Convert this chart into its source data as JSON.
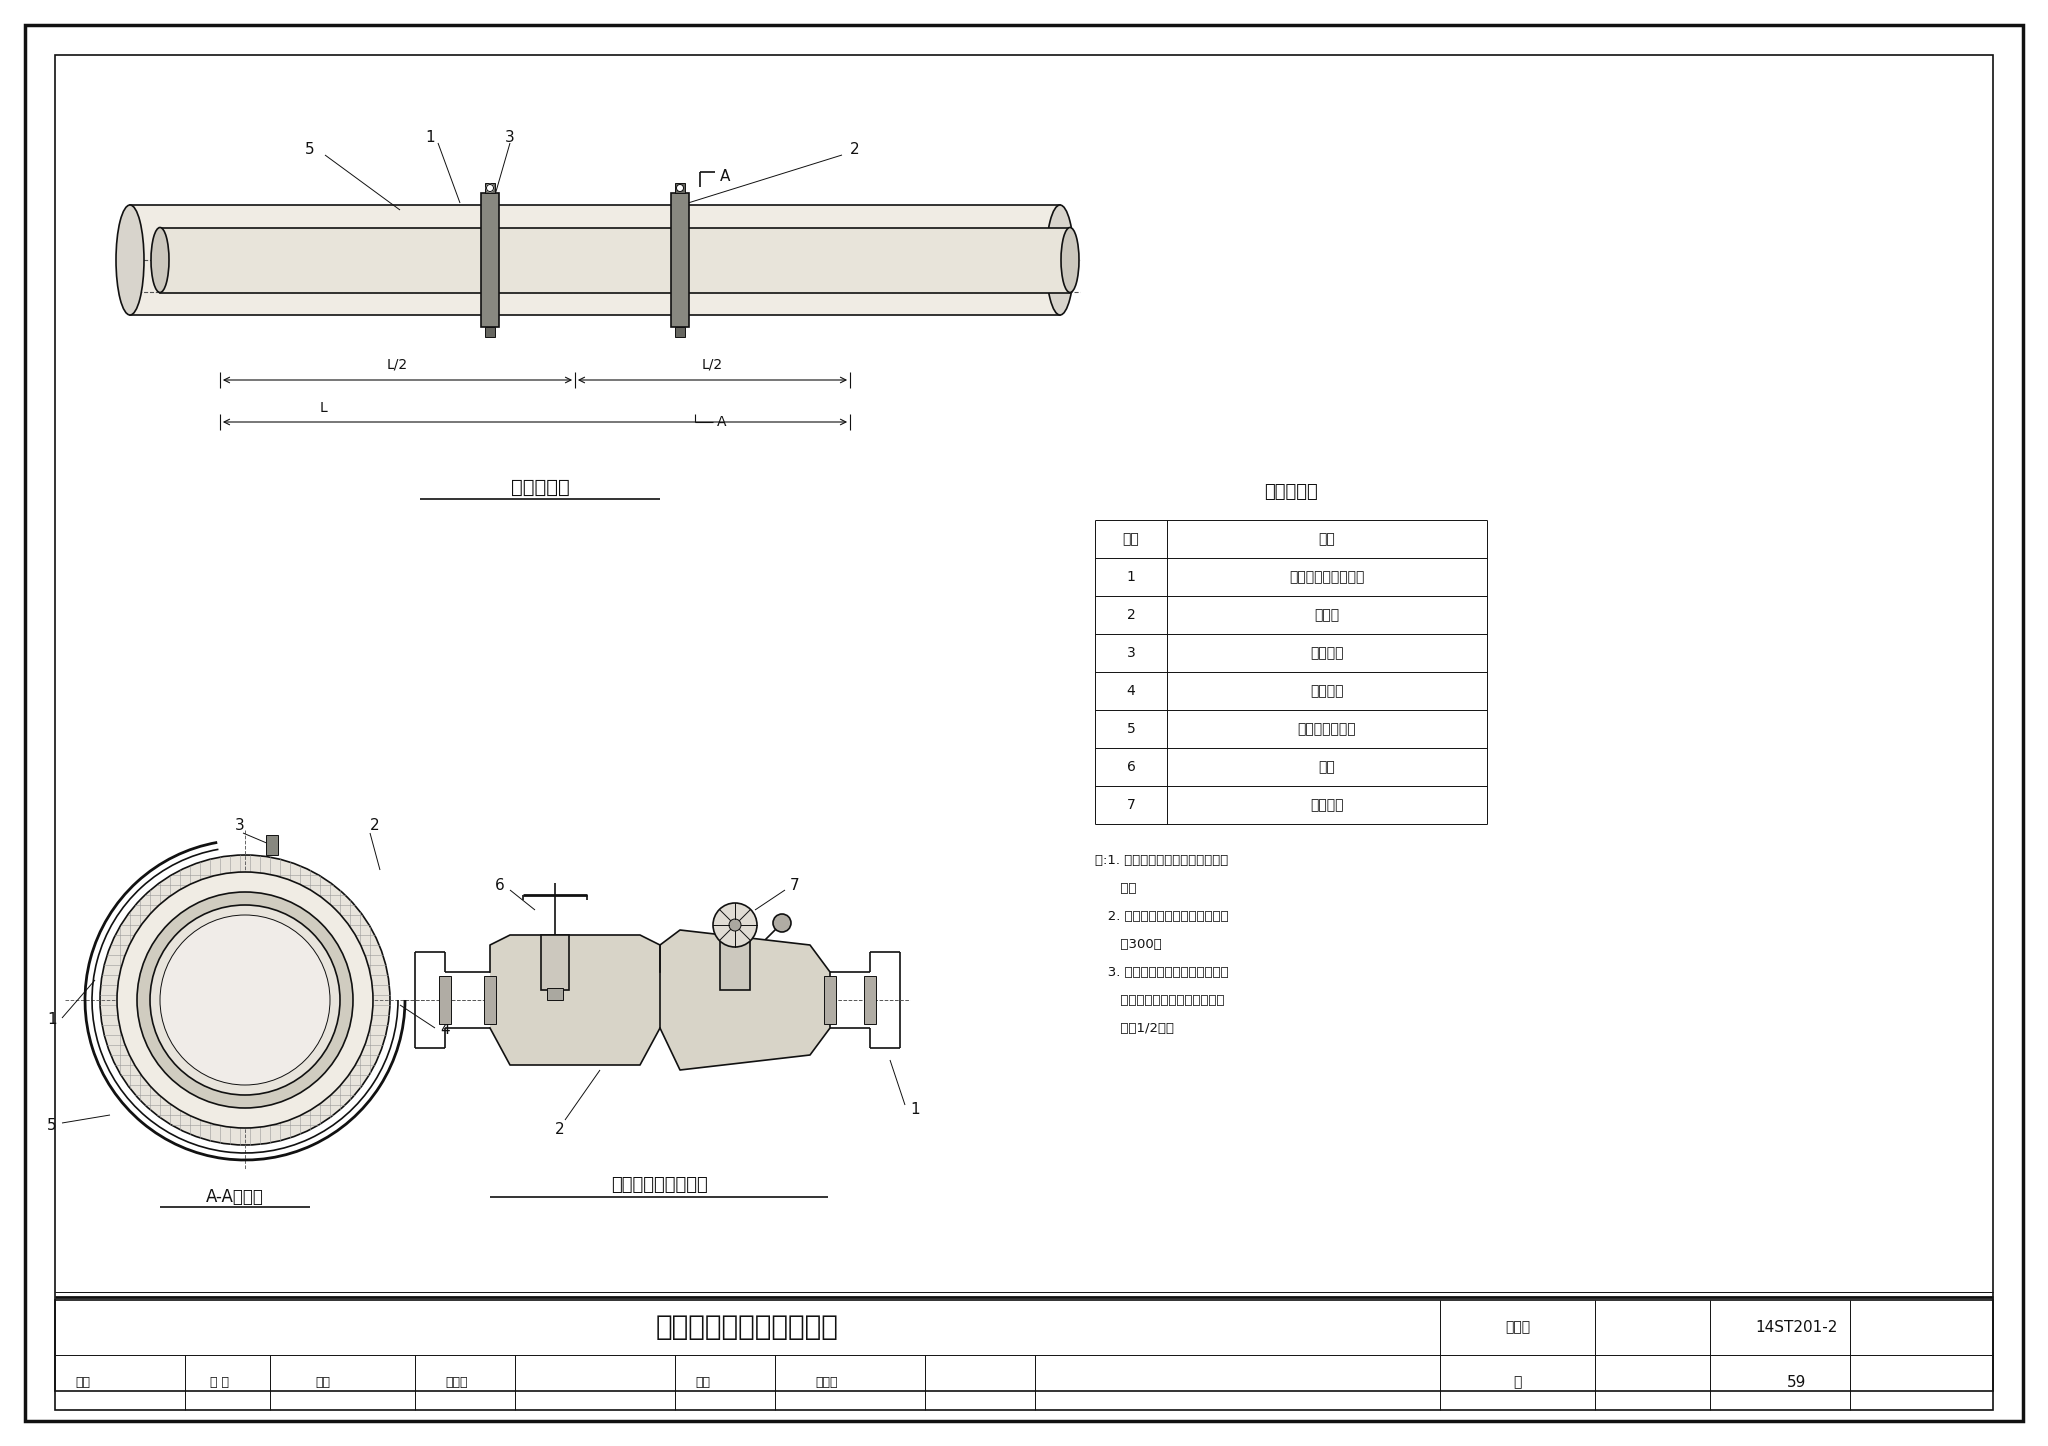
{
  "title": "区间消防管道保温结构图",
  "figure_number": "14ST201-2",
  "page": "59",
  "bg_color": "#ffffff",
  "border_color": "#111111",
  "table_title": "名称对照表",
  "table_headers": [
    "编号",
    "名称"
  ],
  "table_rows": [
    [
      "1",
      "不燃防跌复合保温管"
    ],
    [
      "2",
      "紧固圈"
    ],
    [
      "3",
      "紧固螺杆"
    ],
    [
      "4",
      "紧固螺母"
    ],
    [
      "5",
      "球墨铸铁消防管"
    ],
    [
      "6",
      "阀门"
    ],
    [
      "7",
      "消火栓头"
    ]
  ],
  "note_lines": [
    "注:1. 适用于地铁区间消防水管道保",
    "      温。",
    "   2. 紧固圈安装距管片接缝处不大",
    "      于300。",
    "   3. 不燃防跌复合保温管（无机管",
    "      道保温防火材料）管片接缝应",
    "      错开1/2片。"
  ],
  "label_straight": "直管段安装",
  "label_section": "A-A剖面图",
  "label_hydrant": "消火栓及阀门处安装",
  "line_color": "#111111",
  "footer_left": [
    "审核",
    "甘 楠",
    "校对",
    "赵际顺",
    "设计",
    "赵恒鹏"
  ],
  "title_label": "图集号",
  "page_label": "页"
}
